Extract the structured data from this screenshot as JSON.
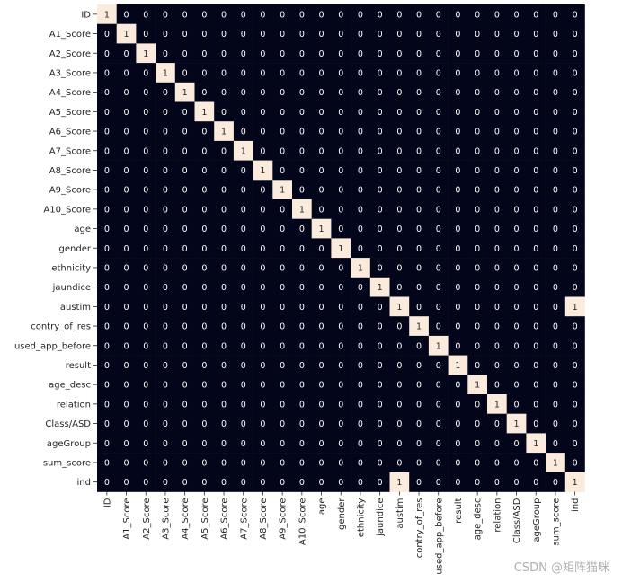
{
  "chart_data": {
    "type": "heatmap",
    "title": "",
    "xlabel": "",
    "ylabel": "",
    "labels": [
      "ID",
      "A1_Score",
      "A2_Score",
      "A3_Score",
      "A4_Score",
      "A5_Score",
      "A6_Score",
      "A7_Score",
      "A8_Score",
      "A9_Score",
      "A10_Score",
      "age",
      "gender",
      "ethnicity",
      "jaundice",
      "austim",
      "contry_of_res",
      "used_app_before",
      "result",
      "age_desc",
      "relation",
      "Class/ASD",
      "ageGroup",
      "sum_score",
      "ind"
    ],
    "extra_ones": [
      [
        "austim",
        "ind"
      ],
      [
        "ind",
        "austim"
      ]
    ],
    "value_range": [
      0,
      1
    ],
    "annotated": true,
    "colorbar": false,
    "colors": {
      "low": "#03051a",
      "high": "#faebdd",
      "low_text": "#ffffff",
      "high_text": "#262626"
    }
  },
  "watermark": "CSDN @矩阵猫咪"
}
